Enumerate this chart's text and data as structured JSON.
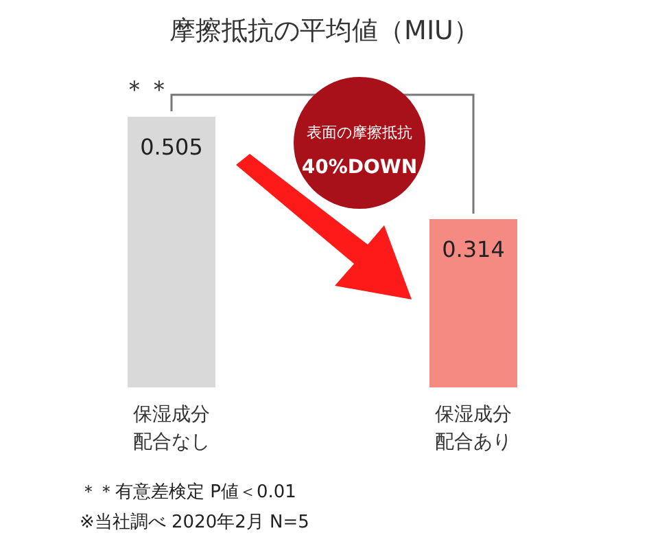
{
  "chart_data": {
    "type": "bar",
    "title": "摩擦抵抗の平均値（MIU）",
    "categories": [
      "保湿成分配合なし",
      "保湿成分配合あり"
    ],
    "values": [
      0.505,
      0.314
    ],
    "colors": [
      "#d9d9d9",
      "#f58a82"
    ],
    "data_labels": true,
    "annotations": [
      "＊＊",
      "表面の摩擦抵抗",
      "40%DOWN",
      "＊＊有意差検定  P値＜0.01",
      "※当社調べ  2020年2月  N=5"
    ]
  }
}
